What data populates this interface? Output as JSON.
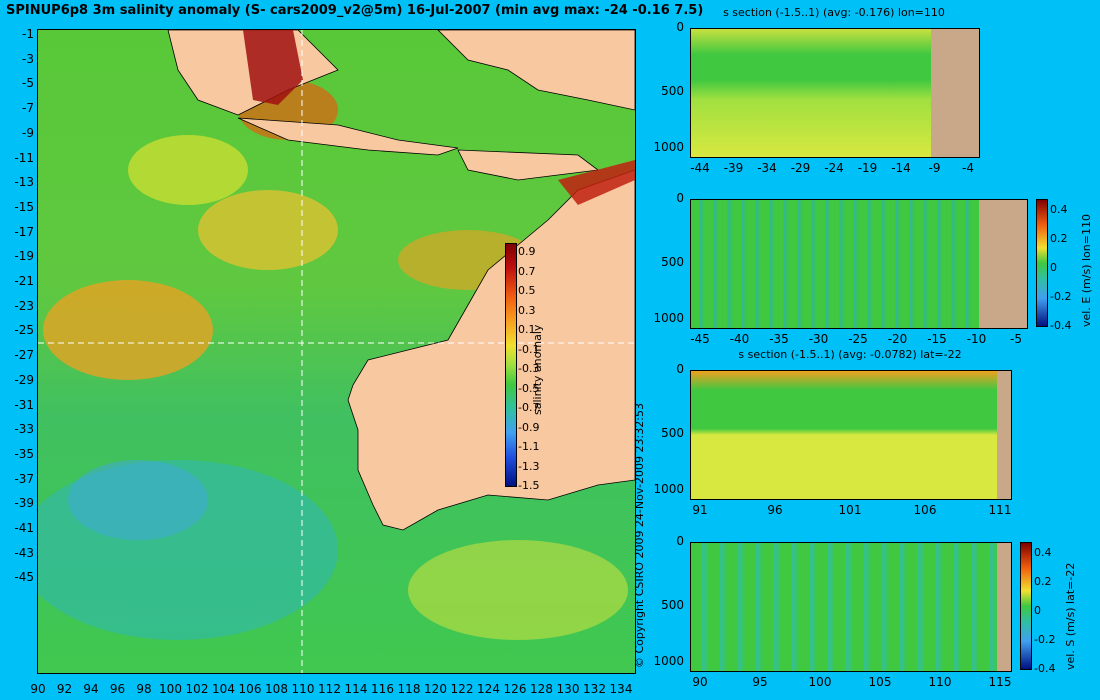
{
  "title": "SPINUP6p8 3m salinity anomaly (S- cars2009_v2@5m) 16-Jul-2007 (min avg max: -24 -0.16 7.5)",
  "copyright": "© Copyright CSIRO 2009  24-Nov-2009 23:32:53",
  "colors": {
    "background": "#00c0f8",
    "land": "#f8c8a0",
    "section_land": "#c8a888",
    "ocean_mid": "#40c840"
  },
  "map": {
    "y_ticks": [
      "-1",
      "-3",
      "-5",
      "-7",
      "-9",
      "-11",
      "-13",
      "-15",
      "-17",
      "-19",
      "-21",
      "-23",
      "-25",
      "-27",
      "-29",
      "-31",
      "-33",
      "-35",
      "-37",
      "-39",
      "-41",
      "-43",
      "-45"
    ],
    "x_ticks": [
      "90",
      "92",
      "94",
      "96",
      "98",
      "100",
      "102",
      "104",
      "106",
      "108",
      "110",
      "112",
      "114",
      "116",
      "118",
      "120",
      "122",
      "124",
      "126",
      "128",
      "130",
      "132",
      "134"
    ],
    "colorbar_label": "salinity anomaly",
    "colorbar_ticks": [
      "0.9",
      "0.7",
      "0.5",
      "0.3",
      "0.1",
      "-0.1",
      "-0.3",
      "-0.5",
      "-0.7",
      "-0.9",
      "-1.1",
      "-1.3",
      "-1.5"
    ],
    "section_lon": 110,
    "section_lat": -22
  },
  "panels": [
    {
      "title": "s section (-1.5..1) (avg: -0.176) lon=110",
      "x_ticks": [
        "-44",
        "-39",
        "-34",
        "-29",
        "-24",
        "-19",
        "-14",
        "-9",
        "-4"
      ],
      "y_ticks": [
        "0",
        "500",
        "1000"
      ],
      "colorbar": false
    },
    {
      "title": "",
      "x_ticks": [
        "-45",
        "-40",
        "-35",
        "-30",
        "-25",
        "-20",
        "-15",
        "-10",
        "-5"
      ],
      "y_ticks": [
        "0",
        "500",
        "1000"
      ],
      "colorbar": true,
      "cb_label": "vel. E (m/s) lon=110",
      "cb_ticks": [
        "0.4",
        "0.2",
        "0",
        "-0.2",
        "-0.4"
      ]
    },
    {
      "title": "s section (-1.5..1) (avg: -0.0782) lat=-22",
      "x_ticks": [
        "91",
        "96",
        "101",
        "106",
        "111"
      ],
      "y_ticks": [
        "0",
        "500",
        "1000"
      ],
      "colorbar": false
    },
    {
      "title": "",
      "x_ticks": [
        "90",
        "95",
        "100",
        "105",
        "110",
        "115"
      ],
      "y_ticks": [
        "0",
        "500",
        "1000"
      ],
      "colorbar": true,
      "cb_label": "vel. S (m/s) lat=-22",
      "cb_ticks": [
        "0.4",
        "0.2",
        "0",
        "-0.2",
        "-0.4"
      ]
    }
  ]
}
